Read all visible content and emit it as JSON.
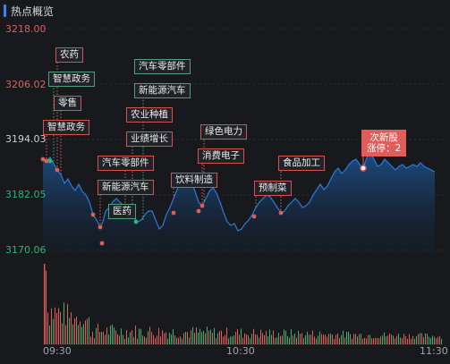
{
  "panel": {
    "title": "热点概览"
  },
  "colors": {
    "up": "#e05d5a",
    "down": "#2bb673",
    "line": "#2a7bd8",
    "accent": "#3b82f6"
  },
  "chart_data": {
    "type": "area",
    "y_ticks": [
      "3218.00",
      "3206.02",
      "3194.03",
      "3182.05",
      "3170.06"
    ],
    "x_ticks": [
      "09:30",
      "10:30",
      "11:30"
    ],
    "ylim": [
      3170.06,
      3218.0
    ],
    "tags": [
      {
        "label": "农药",
        "color": "up"
      },
      {
        "label": "智慧政务",
        "color": "down"
      },
      {
        "label": "零售",
        "color": "up"
      },
      {
        "label": "智慧政务",
        "color": "up"
      },
      {
        "label": "汽车零部件",
        "color": "down"
      },
      {
        "label": "新能源汽车",
        "color": "down"
      },
      {
        "label": "农业种植",
        "color": "up"
      },
      {
        "label": "业绩增长",
        "color": "up"
      },
      {
        "label": "汽车零部件",
        "color": "up"
      },
      {
        "label": "新能源汽车",
        "color": "up"
      },
      {
        "label": "医药",
        "color": "down"
      },
      {
        "label": "绿色电力",
        "color": "up"
      },
      {
        "label": "消费电子",
        "color": "up"
      },
      {
        "label": "饮料制造",
        "color": "up"
      },
      {
        "label": "预制菜",
        "color": "up"
      },
      {
        "label": "食品加工",
        "color": "up"
      }
    ],
    "highlight": {
      "line1": "次新股",
      "line2": "涨停：2"
    }
  }
}
